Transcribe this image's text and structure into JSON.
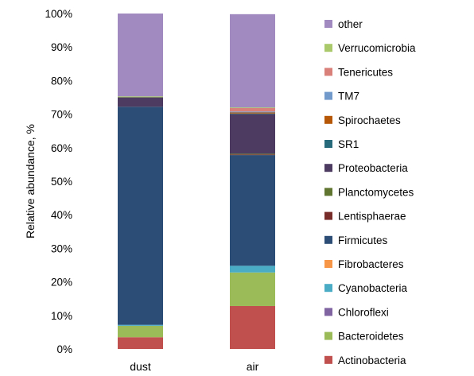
{
  "chart_data": {
    "type": "bar",
    "stacked": true,
    "categories": [
      "dust",
      "air"
    ],
    "ylabel": "Relative abundance, %",
    "xlabel": "",
    "ylim": [
      0,
      100
    ],
    "yticks": [
      "0%",
      "10%",
      "20%",
      "30%",
      "40%",
      "50%",
      "60%",
      "70%",
      "80%",
      "90%",
      "100%"
    ],
    "legend_position": "right",
    "grid": false,
    "series": [
      {
        "name": "Actinobacteria",
        "color": "#c0504d",
        "values": [
          3.5,
          12.8
        ]
      },
      {
        "name": "Bacteroidetes",
        "color": "#9bbb59",
        "values": [
          3.4,
          10.0
        ]
      },
      {
        "name": "Chloroflexi",
        "color": "#8064a2",
        "values": [
          0.0,
          0.0
        ]
      },
      {
        "name": "Cyanobacteria",
        "color": "#4bacc6",
        "values": [
          0.3,
          2.0
        ]
      },
      {
        "name": "Fibrobacteres",
        "color": "#f79646",
        "values": [
          0.0,
          0.0
        ]
      },
      {
        "name": "Firmicutes",
        "color": "#2c4d75",
        "values": [
          65.0,
          33.0
        ]
      },
      {
        "name": "Lentisphaerae",
        "color": "#772c2a",
        "values": [
          0.0,
          0.2
        ]
      },
      {
        "name": "Planctomycetes",
        "color": "#5f7530",
        "values": [
          0.0,
          0.2
        ]
      },
      {
        "name": "Proteobacteria",
        "color": "#4d3b62",
        "values": [
          2.8,
          11.8
        ]
      },
      {
        "name": "SR1",
        "color": "#276a7c",
        "values": [
          0.0,
          0.2
        ]
      },
      {
        "name": "Spirochaetes",
        "color": "#b65708",
        "values": [
          0.0,
          0.3
        ]
      },
      {
        "name": "TM7",
        "color": "#729aca",
        "values": [
          0.0,
          0.3
        ]
      },
      {
        "name": "Tenericutes",
        "color": "#d9807a",
        "values": [
          0.0,
          1.0
        ]
      },
      {
        "name": "Verrucomicrobia",
        "color": "#a9c96a",
        "values": [
          0.3,
          0.2
        ]
      },
      {
        "name": "other",
        "color": "#a08ac0",
        "values": [
          24.7,
          27.8
        ]
      }
    ]
  }
}
